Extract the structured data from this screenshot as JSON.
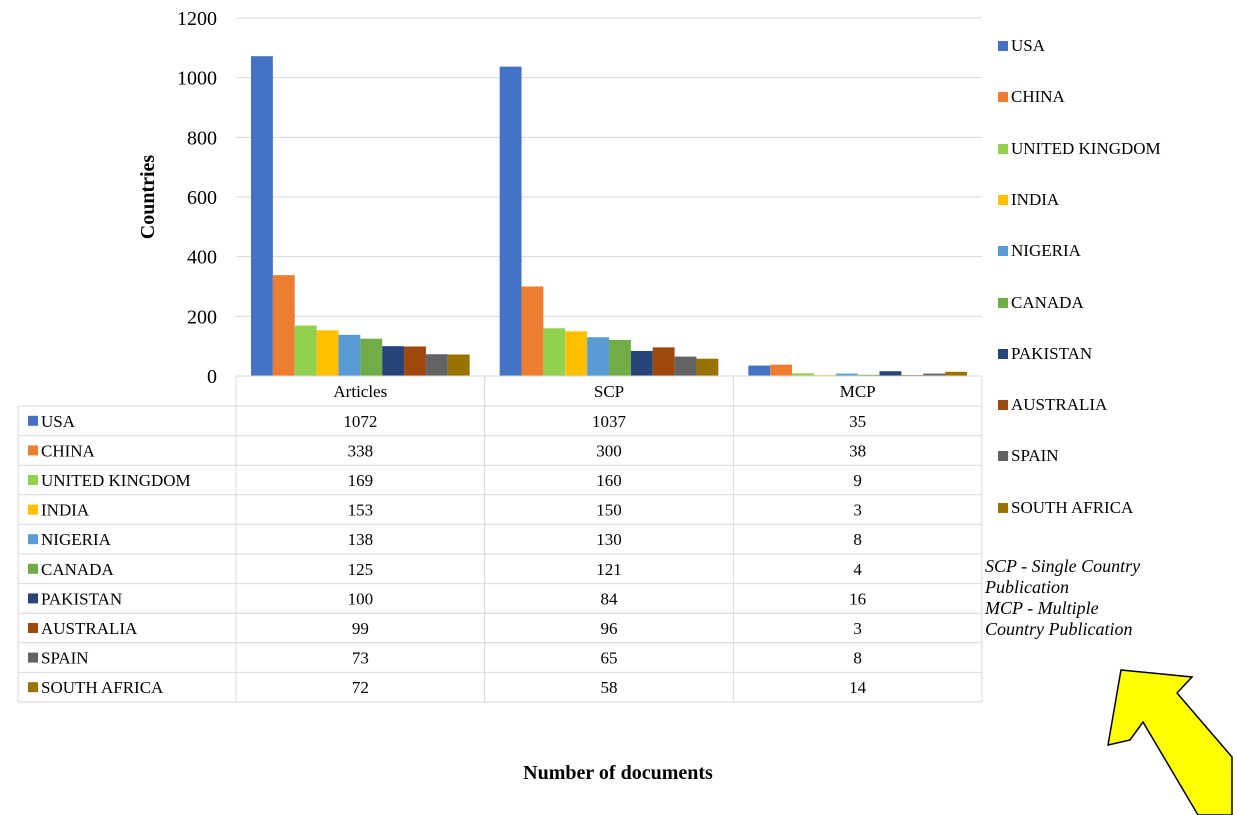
{
  "chart_data": {
    "type": "bar",
    "categories": [
      "Articles",
      "SCP",
      "MCP"
    ],
    "series": [
      {
        "name": "USA",
        "color": "#4472C4",
        "values": [
          1072,
          1037,
          35
        ]
      },
      {
        "name": "CHINA",
        "color": "#ED7D31",
        "values": [
          338,
          300,
          38
        ]
      },
      {
        "name": "UNITED KINGDOM",
        "color": "#92D050",
        "values": [
          169,
          160,
          9
        ]
      },
      {
        "name": "INDIA",
        "color": "#FFC000",
        "values": [
          153,
          150,
          3
        ]
      },
      {
        "name": "NIGERIA",
        "color": "#5B9BD5",
        "values": [
          138,
          130,
          8
        ]
      },
      {
        "name": "CANADA",
        "color": "#70AD47",
        "values": [
          125,
          121,
          4
        ]
      },
      {
        "name": "PAKISTAN",
        "color": "#264478",
        "values": [
          100,
          84,
          16
        ]
      },
      {
        "name": "AUSTRALIA",
        "color": "#9E480E",
        "values": [
          99,
          96,
          3
        ]
      },
      {
        "name": "SPAIN",
        "color": "#636363",
        "values": [
          73,
          65,
          8
        ]
      },
      {
        "name": "SOUTH AFRICA",
        "color": "#997300",
        "values": [
          72,
          58,
          14
        ]
      }
    ],
    "ylabel": "Countries",
    "xlabel": "Number of documents",
    "ylim": [
      0,
      1200
    ],
    "yticks": [
      0,
      200,
      400,
      600,
      800,
      1000,
      1200
    ],
    "grid": true,
    "legend": "right",
    "data_table": true
  },
  "annotation": {
    "lines": [
      "SCP - Single Country",
      "Publication",
      "MCP - Multiple",
      "Country Publication"
    ],
    "arrow_color": "#FFFF00"
  }
}
